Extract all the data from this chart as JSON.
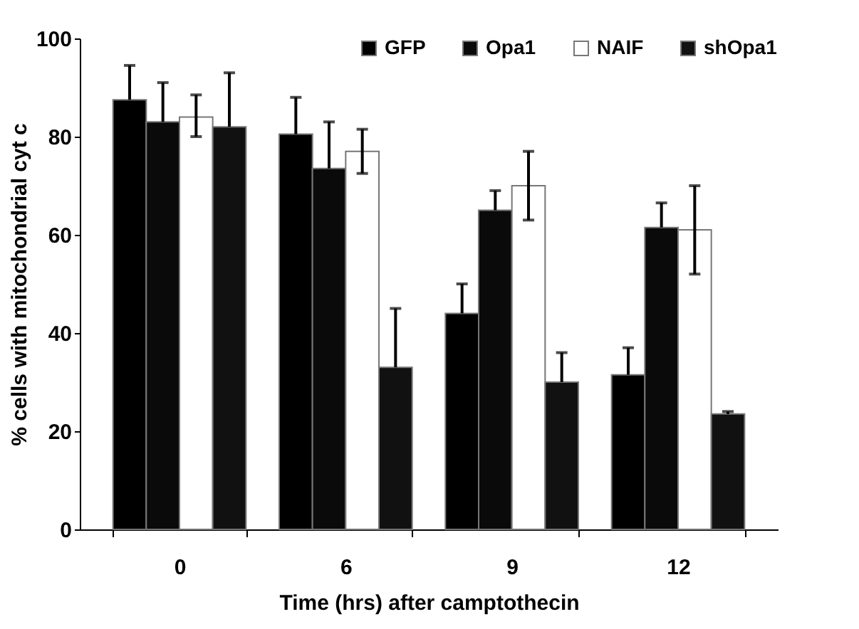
{
  "chart_data": {
    "type": "bar",
    "xlabel": "Time (hrs) after camptothecin",
    "ylabel": "% cells with mitochondrial cyt c",
    "categories": [
      "0",
      "6",
      "9",
      "12"
    ],
    "series": [
      {
        "name": "GFP",
        "color": "#000000",
        "values": [
          87.5,
          80.5,
          44,
          31.5
        ],
        "errors": [
          [
            87.5,
            94.5
          ],
          [
            80.5,
            88
          ],
          [
            44,
            50
          ],
          [
            31.5,
            37
          ]
        ]
      },
      {
        "name": "Opa1",
        "color": "#0a0a0a",
        "values": [
          83,
          73.5,
          65,
          61.5
        ],
        "errors": [
          [
            83,
            91
          ],
          [
            73.5,
            83
          ],
          [
            65,
            69
          ],
          [
            61.5,
            66.5
          ]
        ]
      },
      {
        "name": "NAIF",
        "color": "#ffffff",
        "values": [
          84,
          77,
          70,
          61
        ],
        "errors": [
          [
            80,
            88.5
          ],
          [
            72.5,
            81.5
          ],
          [
            63,
            77
          ],
          [
            52,
            70
          ]
        ]
      },
      {
        "name": "shOpa1",
        "color": "#111111",
        "values": [
          82,
          33,
          30,
          23.5
        ],
        "errors": [
          [
            82,
            93
          ],
          [
            33,
            45
          ],
          [
            30,
            36
          ],
          [
            23.5,
            24
          ]
        ]
      }
    ],
    "ylim": [
      0,
      100
    ],
    "yticks": [
      0,
      20,
      40,
      60,
      80,
      100
    ],
    "grid": false,
    "legend": "top right"
  }
}
